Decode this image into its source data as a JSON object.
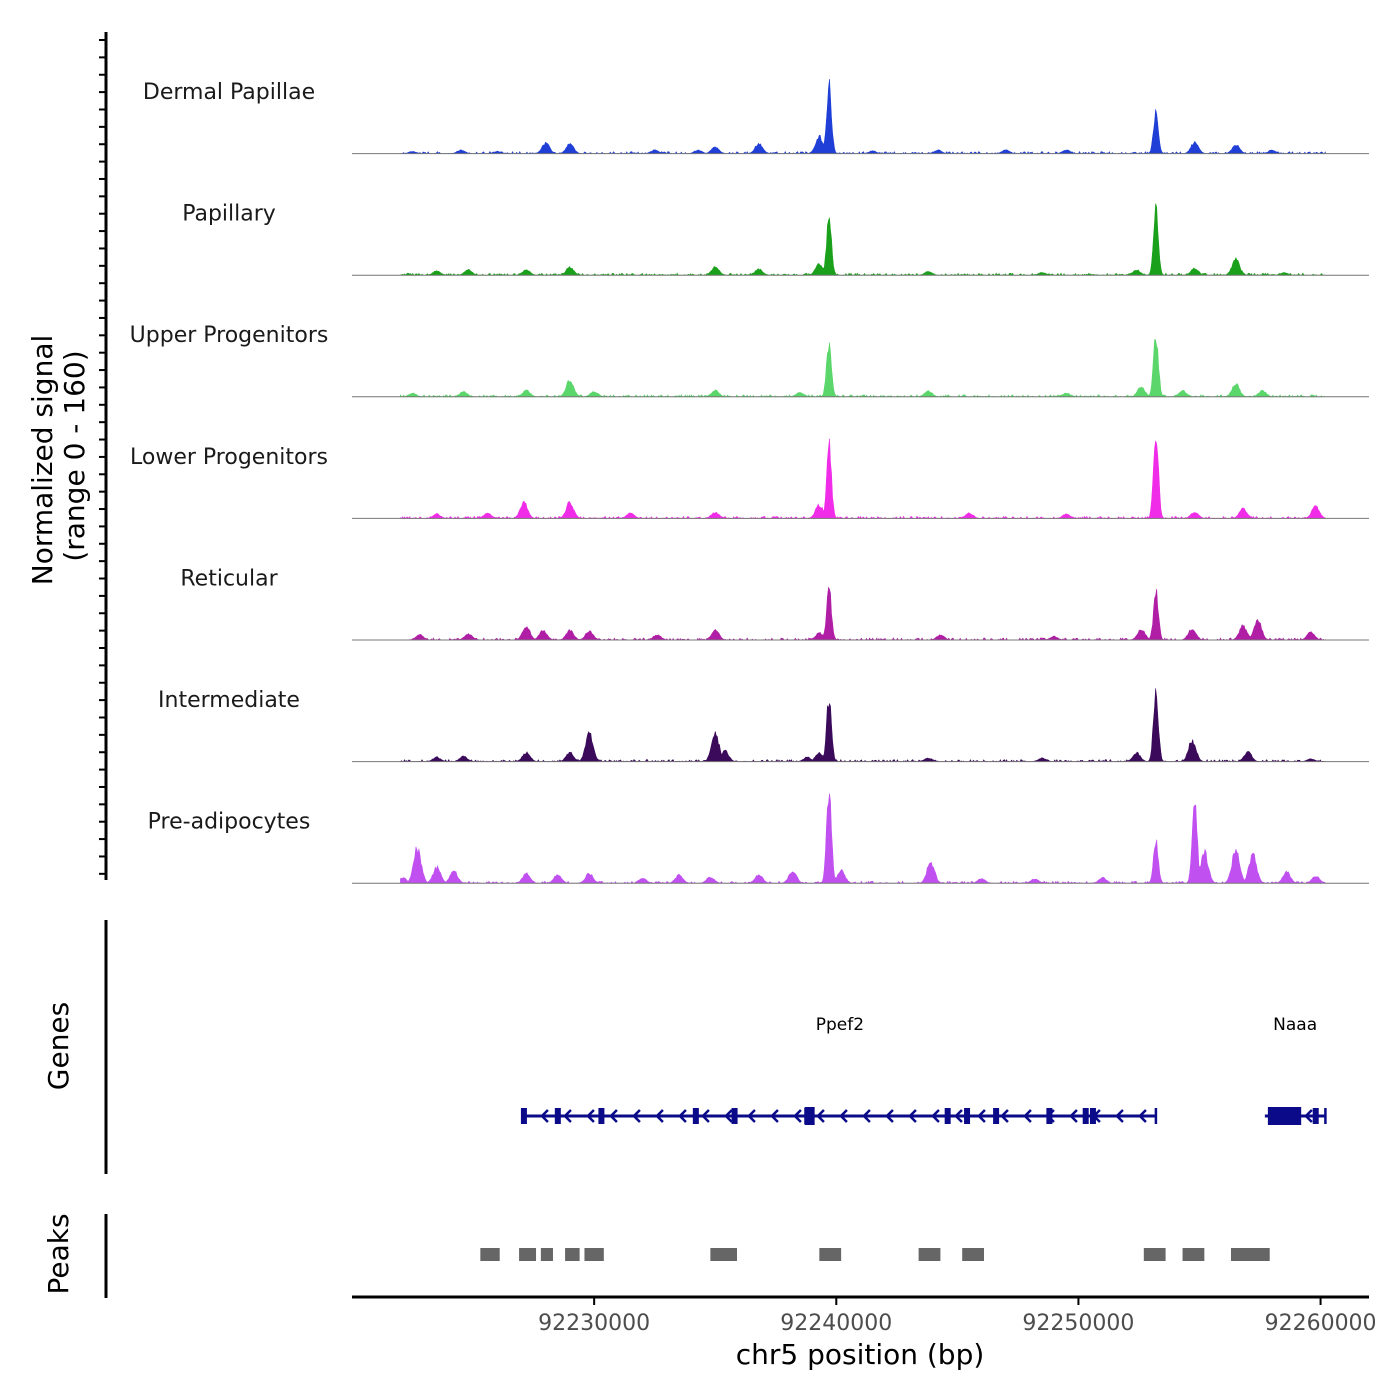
{
  "chart_data": {
    "type": "area",
    "title": "",
    "ylabel": "Normalized signal",
    "ylabel_sub": "(range 0 - 160)",
    "y_range": [
      0,
      160
    ],
    "xlabel": "chr5 position (bp)",
    "x_range": [
      92220000,
      92262000
    ],
    "x_ticks": [
      92230000,
      92240000,
      92250000,
      92260000
    ],
    "x_tick_labels": [
      "92230000",
      "92240000",
      "92250000",
      "92260000"
    ],
    "series": [
      {
        "name": "Dermal Papillae",
        "color": "#1f3fd6",
        "peaks": [
          {
            "pos": 92222500,
            "value": 5
          },
          {
            "pos": 92224500,
            "value": 8
          },
          {
            "pos": 92226000,
            "value": 5
          },
          {
            "pos": 92228000,
            "value": 24
          },
          {
            "pos": 92229000,
            "value": 22
          },
          {
            "pos": 92232500,
            "value": 8
          },
          {
            "pos": 92234300,
            "value": 8
          },
          {
            "pos": 92235000,
            "value": 15
          },
          {
            "pos": 92236800,
            "value": 22
          },
          {
            "pos": 92239300,
            "value": 38
          },
          {
            "pos": 92239700,
            "value": 155
          },
          {
            "pos": 92241500,
            "value": 6
          },
          {
            "pos": 92244200,
            "value": 8
          },
          {
            "pos": 92247000,
            "value": 8
          },
          {
            "pos": 92249500,
            "value": 8
          },
          {
            "pos": 92253200,
            "value": 90
          },
          {
            "pos": 92254800,
            "value": 25
          },
          {
            "pos": 92256500,
            "value": 20
          },
          {
            "pos": 92258000,
            "value": 8
          }
        ]
      },
      {
        "name": "Papillary",
        "color": "#1aa01a",
        "peaks": [
          {
            "pos": 92223500,
            "value": 10
          },
          {
            "pos": 92224800,
            "value": 12
          },
          {
            "pos": 92227200,
            "value": 12
          },
          {
            "pos": 92229000,
            "value": 18
          },
          {
            "pos": 92235000,
            "value": 18
          },
          {
            "pos": 92236800,
            "value": 14
          },
          {
            "pos": 92239300,
            "value": 25
          },
          {
            "pos": 92239700,
            "value": 135
          },
          {
            "pos": 92243800,
            "value": 8
          },
          {
            "pos": 92248500,
            "value": 6
          },
          {
            "pos": 92252400,
            "value": 12
          },
          {
            "pos": 92253200,
            "value": 148
          },
          {
            "pos": 92254800,
            "value": 15
          },
          {
            "pos": 92256500,
            "value": 35
          },
          {
            "pos": 92258500,
            "value": 6
          }
        ]
      },
      {
        "name": "Upper Progenitors",
        "color": "#5ad66a",
        "peaks": [
          {
            "pos": 92222500,
            "value": 8
          },
          {
            "pos": 92224600,
            "value": 12
          },
          {
            "pos": 92227200,
            "value": 14
          },
          {
            "pos": 92229000,
            "value": 38
          },
          {
            "pos": 92230000,
            "value": 12
          },
          {
            "pos": 92235000,
            "value": 14
          },
          {
            "pos": 92238500,
            "value": 10
          },
          {
            "pos": 92239700,
            "value": 122
          },
          {
            "pos": 92243800,
            "value": 14
          },
          {
            "pos": 92249500,
            "value": 8
          },
          {
            "pos": 92252600,
            "value": 22
          },
          {
            "pos": 92253200,
            "value": 140
          },
          {
            "pos": 92254300,
            "value": 14
          },
          {
            "pos": 92256500,
            "value": 28
          },
          {
            "pos": 92257600,
            "value": 14
          }
        ]
      },
      {
        "name": "Lower Progenitors",
        "color": "#f02ce8",
        "peaks": [
          {
            "pos": 92223500,
            "value": 10
          },
          {
            "pos": 92225600,
            "value": 12
          },
          {
            "pos": 92227100,
            "value": 35
          },
          {
            "pos": 92229000,
            "value": 36
          },
          {
            "pos": 92231500,
            "value": 12
          },
          {
            "pos": 92235000,
            "value": 14
          },
          {
            "pos": 92239300,
            "value": 30
          },
          {
            "pos": 92239700,
            "value": 162
          },
          {
            "pos": 92245500,
            "value": 12
          },
          {
            "pos": 92249500,
            "value": 10
          },
          {
            "pos": 92253200,
            "value": 196
          },
          {
            "pos": 92254800,
            "value": 14
          },
          {
            "pos": 92256800,
            "value": 22
          },
          {
            "pos": 92259800,
            "value": 28
          }
        ]
      },
      {
        "name": "Reticular",
        "color": "#b01ea6",
        "peaks": [
          {
            "pos": 92222800,
            "value": 12
          },
          {
            "pos": 92224800,
            "value": 14
          },
          {
            "pos": 92227200,
            "value": 30
          },
          {
            "pos": 92227900,
            "value": 22
          },
          {
            "pos": 92229000,
            "value": 22
          },
          {
            "pos": 92229800,
            "value": 20
          },
          {
            "pos": 92232600,
            "value": 12
          },
          {
            "pos": 92235000,
            "value": 22
          },
          {
            "pos": 92239300,
            "value": 16
          },
          {
            "pos": 92239700,
            "value": 115
          },
          {
            "pos": 92244300,
            "value": 12
          },
          {
            "pos": 92249000,
            "value": 8
          },
          {
            "pos": 92252600,
            "value": 24
          },
          {
            "pos": 92253200,
            "value": 108
          },
          {
            "pos": 92254700,
            "value": 26
          },
          {
            "pos": 92256800,
            "value": 32
          },
          {
            "pos": 92257400,
            "value": 45
          },
          {
            "pos": 92259600,
            "value": 18
          }
        ]
      },
      {
        "name": "Intermediate",
        "color": "#3b0a5a",
        "peaks": [
          {
            "pos": 92223500,
            "value": 10
          },
          {
            "pos": 92224600,
            "value": 12
          },
          {
            "pos": 92227200,
            "value": 20
          },
          {
            "pos": 92229000,
            "value": 20
          },
          {
            "pos": 92229800,
            "value": 62
          },
          {
            "pos": 92235000,
            "value": 64
          },
          {
            "pos": 92235400,
            "value": 25
          },
          {
            "pos": 92238800,
            "value": 10
          },
          {
            "pos": 92239300,
            "value": 20
          },
          {
            "pos": 92239700,
            "value": 145
          },
          {
            "pos": 92243800,
            "value": 8
          },
          {
            "pos": 92248500,
            "value": 8
          },
          {
            "pos": 92252400,
            "value": 20
          },
          {
            "pos": 92253200,
            "value": 165
          },
          {
            "pos": 92254700,
            "value": 48
          },
          {
            "pos": 92257000,
            "value": 22
          },
          {
            "pos": 92259600,
            "value": 6
          }
        ]
      },
      {
        "name": "Pre-adipocytes",
        "color": "#c050f0",
        "peaks": [
          {
            "pos": 92222100,
            "value": 12
          },
          {
            "pos": 92222700,
            "value": 80
          },
          {
            "pos": 92223500,
            "value": 35
          },
          {
            "pos": 92224200,
            "value": 28
          },
          {
            "pos": 92227200,
            "value": 22
          },
          {
            "pos": 92228500,
            "value": 20
          },
          {
            "pos": 92229800,
            "value": 22
          },
          {
            "pos": 92232000,
            "value": 12
          },
          {
            "pos": 92233500,
            "value": 18
          },
          {
            "pos": 92234800,
            "value": 14
          },
          {
            "pos": 92236800,
            "value": 20
          },
          {
            "pos": 92238200,
            "value": 28
          },
          {
            "pos": 92239700,
            "value": 208
          },
          {
            "pos": 92240200,
            "value": 30
          },
          {
            "pos": 92243900,
            "value": 48
          },
          {
            "pos": 92246000,
            "value": 10
          },
          {
            "pos": 92248200,
            "value": 10
          },
          {
            "pos": 92251000,
            "value": 12
          },
          {
            "pos": 92253200,
            "value": 92
          },
          {
            "pos": 92254800,
            "value": 198
          },
          {
            "pos": 92255200,
            "value": 70
          },
          {
            "pos": 92256500,
            "value": 78
          },
          {
            "pos": 92257200,
            "value": 65
          },
          {
            "pos": 92258600,
            "value": 25
          },
          {
            "pos": 92259800,
            "value": 16
          }
        ]
      }
    ],
    "genes_track_label": "Genes",
    "genes": [
      {
        "name": "Ppef2",
        "start": 92227100,
        "end": 92253200,
        "strand": "-",
        "exons": [
          92227100,
          92228500,
          92230300,
          92234200,
          92235800,
          92238800,
          92244600,
          92245400,
          92246600,
          92248800,
          92250300,
          92250600
        ]
      },
      {
        "name": "Naaa",
        "start": 92257700,
        "end": 92260200,
        "strand": "-",
        "exons": [
          92258200,
          92259800
        ]
      }
    ],
    "peaks_track_label": "Peaks",
    "peak_regions": [
      [
        92225300,
        92226100
      ],
      [
        92226900,
        92227600
      ],
      [
        92227800,
        92228300
      ],
      [
        92228800,
        92229400
      ],
      [
        92229600,
        92230400
      ],
      [
        92234800,
        92235900
      ],
      [
        92239300,
        92240200
      ],
      [
        92243400,
        92244300
      ],
      [
        92245200,
        92246100
      ],
      [
        92252700,
        92253600
      ],
      [
        92254300,
        92255200
      ],
      [
        92256300,
        92257900
      ]
    ]
  }
}
